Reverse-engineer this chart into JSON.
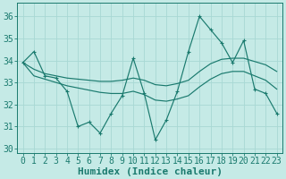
{
  "background_color": "#c5eae6",
  "grid_color": "#a8d8d4",
  "line_color": "#1a7a6e",
  "xlim": [
    -0.5,
    23.5
  ],
  "ylim": [
    29.8,
    36.6
  ],
  "yticks": [
    30,
    31,
    32,
    33,
    34,
    35,
    36
  ],
  "xticks": [
    0,
    1,
    2,
    3,
    4,
    5,
    6,
    7,
    8,
    9,
    10,
    11,
    12,
    13,
    14,
    15,
    16,
    17,
    18,
    19,
    20,
    21,
    22,
    23
  ],
  "xlabel": "Humidex (Indice chaleur)",
  "zigzag": [
    33.9,
    34.4,
    33.3,
    33.2,
    32.6,
    31.0,
    31.2,
    30.7,
    31.6,
    32.4,
    34.1,
    32.5,
    30.4,
    31.3,
    32.6,
    34.4,
    36.0,
    35.4,
    34.8,
    33.9,
    34.9,
    32.7,
    32.5,
    31.6
  ],
  "smooth_upper": [
    33.9,
    33.6,
    33.4,
    33.3,
    33.2,
    33.15,
    33.1,
    33.05,
    33.05,
    33.1,
    33.2,
    33.1,
    32.9,
    32.85,
    32.95,
    33.1,
    33.5,
    33.85,
    34.05,
    34.1,
    34.1,
    33.95,
    33.8,
    33.5
  ],
  "smooth_lower": [
    33.9,
    33.3,
    33.15,
    33.0,
    32.85,
    32.75,
    32.65,
    32.55,
    32.5,
    32.5,
    32.6,
    32.45,
    32.2,
    32.15,
    32.25,
    32.4,
    32.8,
    33.15,
    33.4,
    33.5,
    33.5,
    33.3,
    33.1,
    32.7
  ],
  "font_size": 7
}
